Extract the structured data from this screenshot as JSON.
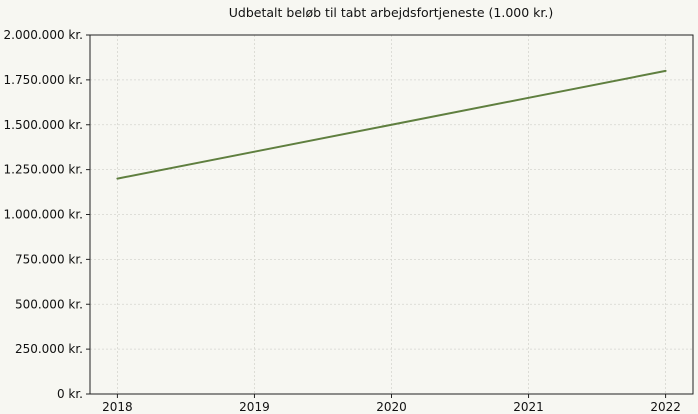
{
  "chart_data": {
    "type": "line",
    "title": "Udbetalt beløb til tabt arbejdsfortjeneste (1.000 kr.)",
    "xlabel": "",
    "ylabel": "",
    "x": [
      2018,
      2019,
      2020,
      2021,
      2022
    ],
    "x_tick_labels": [
      "2018",
      "2019",
      "2020",
      "2021",
      "2022"
    ],
    "series": [
      {
        "values": [
          1200000,
          1350000,
          1500000,
          1650000,
          1800000
        ],
        "color": "#5f7f3f"
      }
    ],
    "ylim": [
      0,
      2000000
    ],
    "xlim": [
      2017.8,
      2022.2
    ],
    "y_ticks": [
      0,
      250000,
      500000,
      750000,
      1000000,
      1250000,
      1500000,
      1750000,
      2000000
    ],
    "y_tick_labels": [
      "0 kr.",
      "250.000 kr.",
      "500.000 kr.",
      "750.000 kr.",
      "1.000.000 kr.",
      "1.250.000 kr.",
      "1.500.000 kr.",
      "1.750.000 kr.",
      "2.000.000 kr."
    ],
    "grid": true,
    "legend": "none",
    "colors": {
      "background": "#f7f7f2",
      "grid": "#d6d6d0",
      "axis": "#222222",
      "line": "#5f7f3f"
    }
  }
}
